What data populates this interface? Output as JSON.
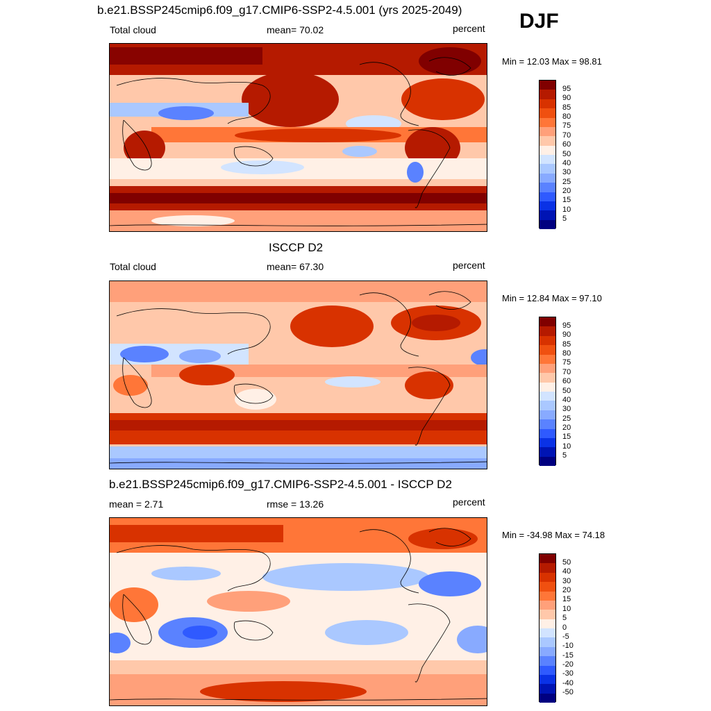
{
  "season": "DJF",
  "panels": [
    {
      "title": "b.e21.BSSP245cmip6.f09_g17.CMIP6-SSP2-4.5.001 (yrs 2025-2049)",
      "left_label": "Total cloud",
      "center_label": "mean=  70.02",
      "right_label": "percent",
      "minmax": "Min =  12.03 Max =  98.81",
      "colorbar_ticks": [
        "95",
        "90",
        "85",
        "80",
        "75",
        "70",
        "60",
        "50",
        "40",
        "30",
        "25",
        "20",
        "15",
        "10",
        "5"
      ],
      "colors": [
        "#800000",
        "#b51a00",
        "#d83200",
        "#f05010",
        "#ff7638",
        "#ffa07a",
        "#ffc8aa",
        "#fff0e6",
        "#d2e4ff",
        "#aac8ff",
        "#88aaff",
        "#5a82ff",
        "#2f5aff",
        "#0a32e6",
        "#0014b4",
        "#000080"
      ]
    },
    {
      "title": "ISCCP D2",
      "left_label": "Total cloud",
      "center_label": "mean=  67.30",
      "right_label": "percent",
      "minmax": "Min =  12.84 Max =  97.10",
      "colorbar_ticks": [
        "95",
        "90",
        "85",
        "80",
        "75",
        "70",
        "60",
        "50",
        "40",
        "30",
        "25",
        "20",
        "15",
        "10",
        "5"
      ],
      "colors": [
        "#800000",
        "#b51a00",
        "#d83200",
        "#f05010",
        "#ff7638",
        "#ffa07a",
        "#ffc8aa",
        "#fff0e6",
        "#d2e4ff",
        "#aac8ff",
        "#88aaff",
        "#5a82ff",
        "#2f5aff",
        "#0a32e6",
        "#0014b4",
        "#000080"
      ]
    },
    {
      "title": "b.e21.BSSP245cmip6.f09_g17.CMIP6-SSP2-4.5.001 - ISCCP D2",
      "left_label": "mean =   2.71",
      "center_label": "rmse =  13.26",
      "right_label": "percent",
      "minmax": "Min = -34.98 Max =  74.18",
      "colorbar_ticks": [
        "50",
        "40",
        "30",
        "20",
        "15",
        "10",
        "5",
        "0",
        "-5",
        "-10",
        "-15",
        "-20",
        "-30",
        "-40",
        "-50"
      ],
      "colors": [
        "#800000",
        "#b51a00",
        "#d83200",
        "#f05010",
        "#ff7638",
        "#ffa07a",
        "#ffc8aa",
        "#fff0e6",
        "#d2e4ff",
        "#aac8ff",
        "#88aaff",
        "#5a82ff",
        "#2f5aff",
        "#0a32e6",
        "#0014b4",
        "#000080"
      ]
    }
  ]
}
